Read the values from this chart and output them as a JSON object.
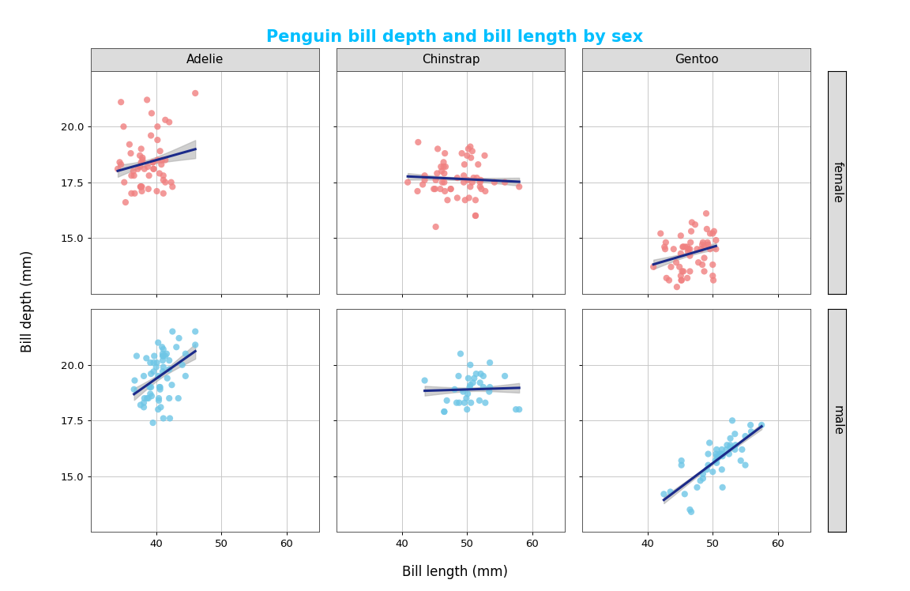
{
  "title": "Penguin bill depth and bill length by sex",
  "title_color": "#00BFFF",
  "xlabel": "Bill length (mm)",
  "ylabel": "Bill depth (mm)",
  "species": [
    "Adelie",
    "Chinstrap",
    "Gentoo"
  ],
  "sexes": [
    "female",
    "male"
  ],
  "female_color": "#F08080",
  "male_color": "#6EC6E6",
  "line_color": "#1B2A8A",
  "ci_color": "#AAAAAA",
  "panel_bg": "#FFFFFF",
  "strip_bg": "#DCDCDC",
  "grid_color": "#C8C8C8",
  "xlim": [
    30,
    65
  ],
  "ylim": [
    12.5,
    22.5
  ],
  "xticks": [
    40,
    50,
    60
  ],
  "yticks": [
    15.0,
    17.5,
    20.0
  ],
  "adelie_female_bl": [
    37.8,
    37.7,
    35.9,
    38.2,
    38.8,
    35.3,
    40.6,
    40.5,
    37.9,
    40.8,
    36.2,
    37.5,
    40.2,
    41.4,
    35.1,
    34.6,
    39.6,
    40.1,
    35.0,
    42.3,
    37.6,
    41.1,
    36.2,
    37.7,
    40.2,
    41.4,
    36.5,
    37.6,
    41.1,
    36.1,
    37.5,
    37.9,
    37.7,
    40.2,
    41.4,
    39.5,
    37.2,
    39.5,
    40.9,
    36.7,
    39.3,
    38.9,
    39.2,
    34.1,
    42.0,
    37.8,
    41.1,
    38.6,
    34.6,
    36.6,
    38.7,
    42.5,
    34.4,
    46.0,
    39.6
  ],
  "adelie_female_bd": [
    17.1,
    17.3,
    19.2,
    18.1,
    17.2,
    16.6,
    18.9,
    17.9,
    18.6,
    18.3,
    17.0,
    18.2,
    18.5,
    20.3,
    17.5,
    18.3,
    18.1,
    17.1,
    20.0,
    17.5,
    17.3,
    17.0,
    17.8,
    19.0,
    20.0,
    18.5,
    18.0,
    17.3,
    17.8,
    18.8,
    18.7,
    18.5,
    18.4,
    19.4,
    17.5,
    18.4,
    18.1,
    18.4,
    18.5,
    17.0,
    20.6,
    17.8,
    19.6,
    18.1,
    20.2,
    17.3,
    17.6,
    21.2,
    21.1,
    17.8,
    18.2,
    17.3,
    18.4,
    21.5,
    18.1
  ],
  "adelie_male_bl": [
    39.1,
    39.5,
    40.3,
    42.0,
    41.1,
    42.5,
    46.0,
    40.6,
    44.5,
    42.0,
    41.0,
    42.1,
    43.1,
    43.4,
    44.0,
    44.5,
    46.0,
    39.2,
    38.8,
    41.7,
    40.4,
    40.6,
    40.4,
    41.1,
    40.7,
    41.0,
    41.4,
    36.7,
    38.1,
    41.6,
    41.0,
    38.6,
    39.2,
    40.9,
    41.1,
    41.0,
    39.6,
    40.1,
    38.1,
    40.3,
    42.0,
    37.6,
    38.2,
    38.1,
    38.5,
    43.5,
    40.3,
    40.5,
    41.1,
    39.0,
    37.0,
    39.7,
    39.6,
    42.4,
    39.1,
    40.0,
    36.6,
    39.3
  ],
  "adelie_male_bd": [
    18.7,
    17.4,
    18.0,
    20.2,
    17.6,
    21.5,
    21.5,
    18.9,
    19.5,
    18.5,
    20.2,
    17.6,
    20.8,
    18.5,
    20.0,
    20.5,
    20.9,
    19.6,
    18.5,
    19.4,
    18.5,
    19.0,
    18.4,
    19.9,
    18.1,
    19.7,
    20.4,
    19.3,
    18.1,
    20.5,
    20.4,
    18.5,
    19.0,
    20.8,
    20.4,
    20.5,
    20.1,
    20.1,
    18.3,
    21.0,
    19.8,
    18.2,
    18.5,
    19.5,
    20.3,
    21.2,
    19.5,
    19.0,
    20.7,
    19.0,
    20.4,
    20.4,
    19.7,
    19.1,
    20.1,
    19.9,
    18.9,
    18.6
  ],
  "chinstrap_female_bl": [
    46.5,
    50.0,
    51.3,
    45.4,
    52.7,
    45.2,
    46.1,
    51.3,
    46.0,
    51.3,
    46.6,
    51.7,
    47.0,
    52.0,
    45.9,
    50.5,
    50.3,
    58.0,
    46.4,
    49.2,
    42.4,
    48.5,
    43.2,
    50.6,
    46.7,
    52.0,
    50.5,
    49.5,
    46.4,
    52.8,
    40.9,
    54.2,
    42.5,
    51.0,
    49.7,
    47.5,
    52.1,
    47.5,
    52.2,
    45.5,
    49.5,
    44.9,
    45.2,
    46.6,
    48.5,
    45.1,
    50.1,
    46.5,
    50.8,
    43.5,
    51.5,
    46.2,
    55.8,
    43.5,
    49.6,
    50.8,
    50.2
  ],
  "chinstrap_female_bd": [
    17.9,
    18.7,
    16.7,
    17.9,
    18.7,
    17.6,
    18.0,
    16.0,
    18.2,
    16.0,
    18.8,
    18.3,
    16.7,
    17.3,
    17.2,
    17.3,
    16.8,
    17.3,
    18.2,
    18.8,
    17.1,
    17.7,
    17.4,
    18.6,
    18.2,
    17.5,
    19.1,
    17.8,
    18.4,
    17.1,
    17.5,
    17.5,
    19.3,
    17.7,
    16.7,
    17.2,
    17.6,
    17.2,
    17.2,
    19.0,
    17.5,
    17.2,
    15.5,
    17.1,
    16.8,
    17.2,
    17.6,
    17.5,
    18.9,
    17.8,
    17.7,
    17.5,
    17.5,
    17.6,
    18.3,
    17.5,
    19.0
  ],
  "chinstrap_male_bl": [
    50.4,
    51.9,
    49.4,
    51.1,
    48.8,
    50.0,
    48.4,
    53.4,
    57.5,
    52.5,
    49.9,
    48.1,
    48.7,
    50.2,
    52.0,
    51.4,
    53.5,
    50.6,
    58.0,
    46.9,
    53.5,
    49.0,
    50.5,
    50.9,
    50.1,
    46.5,
    46.5,
    49.6,
    52.8,
    52.5,
    50.5,
    52.1,
    55.8,
    43.5
  ],
  "chinstrap_male_bd": [
    19.0,
    18.4,
    18.8,
    19.4,
    18.3,
    18.0,
    18.3,
    18.8,
    18.0,
    19.0,
    18.5,
    18.9,
    19.5,
    19.4,
    19.2,
    19.6,
    19.0,
    18.3,
    18.0,
    18.4,
    20.1,
    20.5,
    20.0,
    19.2,
    18.7,
    17.9,
    17.9,
    18.3,
    18.3,
    19.5,
    19.1,
    19.6,
    19.5,
    19.3
  ],
  "gentoo_female_bl": [
    46.1,
    50.0,
    48.7,
    50.0,
    47.6,
    46.5,
    45.4,
    46.7,
    43.3,
    46.8,
    40.9,
    49.0,
    45.5,
    48.4,
    45.8,
    49.3,
    42.0,
    49.2,
    46.2,
    48.7,
    50.2,
    45.1,
    46.5,
    46.3,
    42.9,
    46.1,
    44.5,
    47.8,
    48.2,
    50.0,
    47.3,
    42.8,
    45.1,
    45.2,
    49.1,
    48.4,
    42.6,
    44.4,
    44.0,
    48.7,
    42.7,
    49.6,
    45.3,
    49.6,
    50.5,
    43.6,
    45.5,
    50.5,
    44.9,
    45.2,
    46.6,
    48.5,
    45.1,
    50.1,
    46.5
  ],
  "gentoo_female_bd": [
    13.2,
    13.3,
    14.1,
    15.2,
    14.5,
    13.5,
    14.6,
    15.3,
    13.1,
    15.7,
    13.7,
    16.1,
    13.5,
    14.7,
    14.6,
    14.7,
    15.2,
    14.8,
    14.4,
    14.6,
    15.3,
    13.3,
    14.2,
    14.5,
    13.2,
    14.6,
    12.8,
    13.9,
    14.5,
    13.8,
    15.6,
    14.8,
    14.3,
    13.1,
    15.4,
    13.8,
    14.6,
    13.9,
    14.5,
    13.5,
    14.5,
    15.2,
    13.5,
    14.5,
    14.5,
    13.7,
    14.6,
    14.9,
    13.7,
    13.1,
    14.8,
    14.8,
    15.1,
    13.1,
    14.5
  ],
  "gentoo_male_bl": [
    50.0,
    55.9,
    49.5,
    52.1,
    49.3,
    50.6,
    55.0,
    50.5,
    52.7,
    53.4,
    55.8,
    43.5,
    51.5,
    53.0,
    55.0,
    45.2,
    51.3,
    51.1,
    51.5,
    52.5,
    48.1,
    51.4,
    45.7,
    50.7,
    42.5,
    52.2,
    45.2,
    49.3,
    54.5,
    51.4,
    52.7,
    51.5,
    52.7,
    50.4,
    53.5,
    54.3,
    57.5,
    51.0,
    50.6,
    53.4,
    48.5,
    50.6,
    46.7,
    48.5,
    49.1,
    47.6,
    46.5
  ],
  "gentoo_male_bd": [
    15.2,
    17.0,
    16.5,
    16.2,
    16.0,
    15.6,
    15.5,
    16.0,
    16.4,
    16.9,
    17.3,
    14.3,
    15.9,
    17.5,
    16.8,
    15.5,
    16.0,
    16.0,
    16.0,
    16.0,
    14.8,
    15.3,
    14.2,
    15.8,
    14.2,
    16.4,
    15.7,
    15.5,
    16.2,
    16.2,
    16.7,
    14.5,
    16.3,
    15.7,
    16.4,
    15.7,
    17.3,
    15.9,
    15.9,
    16.2,
    14.9,
    16.2,
    13.4,
    15.1,
    15.3,
    14.5,
    13.5
  ]
}
